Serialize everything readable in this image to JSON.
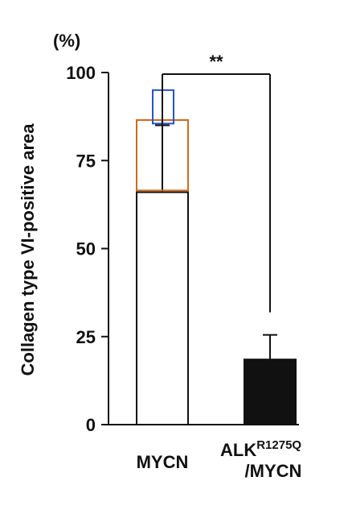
{
  "chart_data": {
    "type": "bar",
    "unit_label": "(%)",
    "ylabel": "Collagen type VI-positive area",
    "ylim": [
      0,
      100
    ],
    "yticks": [
      0,
      25,
      50,
      75,
      100
    ],
    "grid": false,
    "categories": [
      {
        "main": "MYCN",
        "sup": "",
        "line2": ""
      },
      {
        "main": "ALK",
        "sup": "R1275Q",
        "line2": "/MYCN"
      }
    ],
    "values": [
      66,
      18.5
    ],
    "errors": [
      19,
      7
    ],
    "fill_colors": [
      "#ffffff",
      "#111111"
    ],
    "significance": {
      "label": "**",
      "between": [
        0,
        1
      ]
    },
    "highlight_boxes": [
      {
        "bar": 0,
        "from": 66.5,
        "to": 86.5,
        "color": "#d2691e"
      },
      {
        "bar": 0,
        "from": 85.5,
        "to": 95,
        "color": "#2255cc"
      }
    ]
  }
}
